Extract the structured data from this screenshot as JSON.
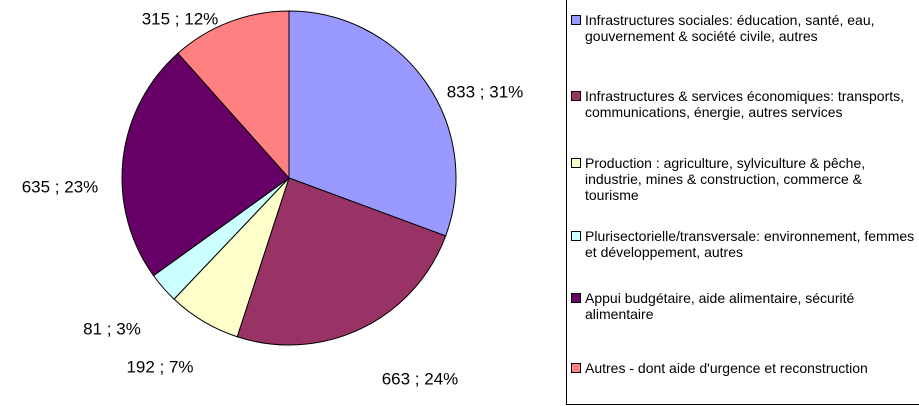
{
  "chart_data": {
    "type": "pie",
    "categories": [
      "Infrastructures sociales: éducation, santé, eau, gouvernement & société civile, autres",
      "Infrastructures & services économiques: transports, communications, énergie, autres services",
      "Production : agriculture, sylviculture & pêche, industrie, mines & construction, commerce & tourisme",
      "Plurisectorielle/transversale: environnement, femmes et développement, autres",
      "Appui budgétaire, aide alimentaire, sécurité alimentaire",
      "Autres - dont aide d'urgence et reconstruction"
    ],
    "values": [
      833,
      663,
      192,
      81,
      635,
      315
    ],
    "value_labels": [
      "833  ;  31%",
      "663  ;   24%",
      "192  ;  7%",
      "81  ;  3%",
      "635  ;  23%",
      "315  ;  12%"
    ],
    "colors": [
      "#9999ff",
      "#993366",
      "#ffffcc",
      "#ccffff",
      "#660066",
      "#ff8080"
    ]
  }
}
